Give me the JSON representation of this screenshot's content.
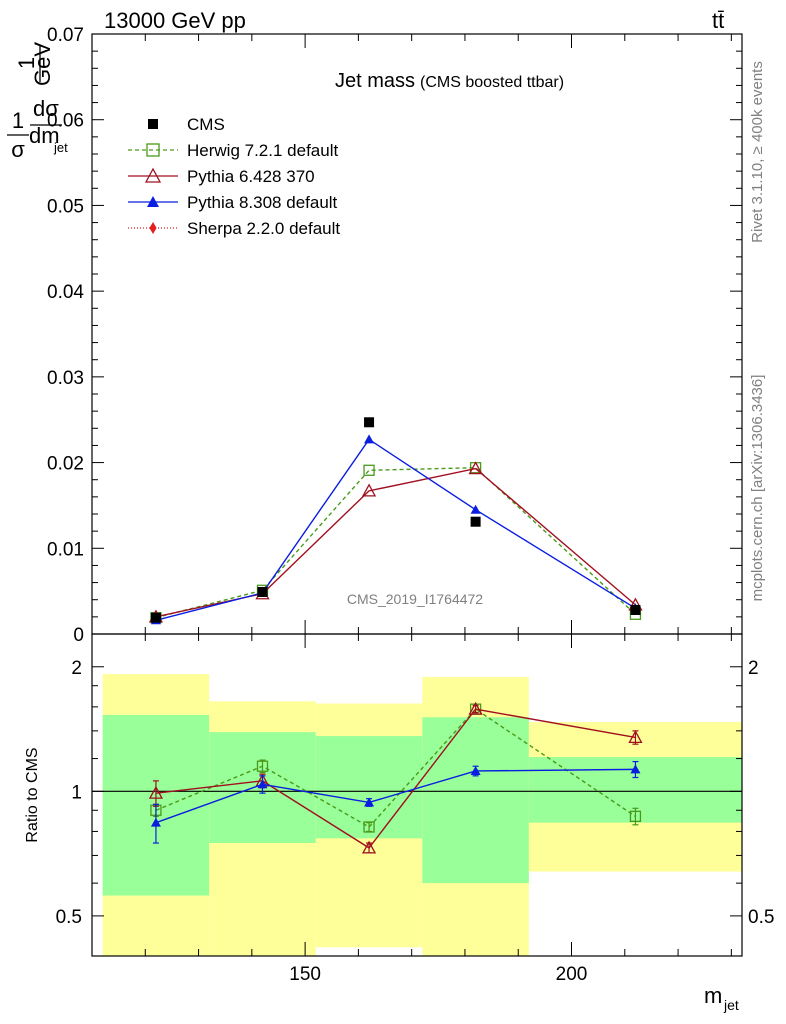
{
  "header": {
    "left": "13000 GeV pp",
    "right": "tt̄"
  },
  "side_labels": {
    "rivet": "Rivet 3.1.10, ≥ 400k events",
    "mcplots": "mcplots.cern.ch [arXiv:1306.3436]"
  },
  "watermark": "CMS_2019_I1764472",
  "chart_data": [
    {
      "type": "line",
      "title": "Jet mass",
      "subtitle": "(CMS boosted ttbar)",
      "ylabel": "1/σ dσ/dm_jet 1/GeV",
      "ylim": [
        0,
        0.07
      ],
      "xlim": [
        110,
        232
      ],
      "yticks": [
        {
          "v": 0,
          "label": "0"
        },
        {
          "v": 0.01,
          "label": "0.01"
        },
        {
          "v": 0.02,
          "label": "0.02"
        },
        {
          "v": 0.03,
          "label": "0.03"
        },
        {
          "v": 0.04,
          "label": "0.04"
        },
        {
          "v": 0.05,
          "label": "0.05"
        },
        {
          "v": 0.06,
          "label": "0.06"
        },
        {
          "v": 0.07,
          "label": "0.07"
        }
      ],
      "data": {
        "name": "CMS",
        "x": [
          122,
          142,
          162,
          182,
          212
        ],
        "y": [
          0.0019,
          0.0049,
          0.0247,
          0.0131,
          0.0028
        ]
      },
      "series": [
        {
          "name": "Herwig 7.2.1 default",
          "color": "#4a9a1a",
          "dash": "4,3",
          "marker": "open-square",
          "x": [
            122,
            142,
            162,
            182,
            212
          ],
          "y": [
            0.0019,
            0.0051,
            0.0191,
            0.0194,
            0.0023
          ]
        },
        {
          "name": "Pythia 6.428 370",
          "color": "#a01020",
          "dash": "",
          "marker": "open-triangle",
          "x": [
            122,
            142,
            162,
            182,
            212
          ],
          "y": [
            0.002,
            0.0047,
            0.0167,
            0.0193,
            0.0034
          ]
        },
        {
          "name": "Pythia 8.308 default",
          "color": "#0a1ee0",
          "dash": "",
          "marker": "filled-triangle",
          "x": [
            122,
            142,
            162,
            182,
            212
          ],
          "y": [
            0.0016,
            0.0048,
            0.0227,
            0.0145,
            0.003
          ]
        },
        {
          "name": "Sherpa 2.2.0 default",
          "color": "#e02020",
          "dash": "1,2",
          "marker": "diamond",
          "x": [],
          "y": []
        }
      ]
    },
    {
      "type": "line",
      "ylabel": "Ratio to CMS",
      "xlabel": "m_jet",
      "log_y": true,
      "ylim": [
        0.4,
        2.4
      ],
      "xlim": [
        110,
        232
      ],
      "yticks": [
        {
          "v": 0.5,
          "label": "0.5"
        },
        {
          "v": 1,
          "label": "1"
        },
        {
          "v": 2,
          "label": "2"
        }
      ],
      "xticks": [
        {
          "v": 150,
          "label": "150"
        },
        {
          "v": 200,
          "label": "200"
        }
      ],
      "bands": [
        {
          "x": [
            112,
            132
          ],
          "green": [
            0.56,
            1.53
          ],
          "yellow": [
            0.38,
            1.92
          ]
        },
        {
          "x": [
            132,
            152
          ],
          "green": [
            0.75,
            1.39
          ],
          "yellow": [
            0.38,
            1.65
          ]
        },
        {
          "x": [
            152,
            172
          ],
          "green": [
            0.77,
            1.36
          ],
          "yellow": [
            0.42,
            1.63
          ]
        },
        {
          "x": [
            172,
            192
          ],
          "green": [
            0.6,
            1.51
          ],
          "yellow": [
            0.38,
            1.89
          ]
        },
        {
          "x": [
            192,
            232
          ],
          "green": [
            0.84,
            1.21
          ],
          "yellow": [
            0.64,
            1.47
          ]
        }
      ],
      "series": [
        {
          "name": "Herwig 7.2.1 default",
          "color": "#4a9a1a",
          "dash": "4,3",
          "marker": "open-square",
          "x": [
            122,
            142,
            162,
            182,
            212
          ],
          "y": [
            0.9,
            1.15,
            0.82,
            1.58,
            0.87
          ],
          "err": [
            0.03,
            0.04,
            0.02,
            0.04,
            0.04
          ]
        },
        {
          "name": "Pythia 6.428 370",
          "color": "#a01020",
          "dash": "",
          "marker": "open-triangle",
          "x": [
            122,
            142,
            162,
            182,
            212
          ],
          "y": [
            0.99,
            1.06,
            0.73,
            1.58,
            1.35
          ],
          "err": [
            0.07,
            0.04,
            0.02,
            0.03,
            0.05
          ]
        },
        {
          "name": "Pythia 8.308 default",
          "color": "#0a1ee0",
          "dash": "",
          "marker": "filled-triangle",
          "x": [
            122,
            142,
            162,
            182,
            212
          ],
          "y": [
            0.84,
            1.04,
            0.94,
            1.12,
            1.13
          ],
          "err": [
            0.09,
            0.05,
            0.02,
            0.03,
            0.05
          ]
        }
      ]
    }
  ]
}
